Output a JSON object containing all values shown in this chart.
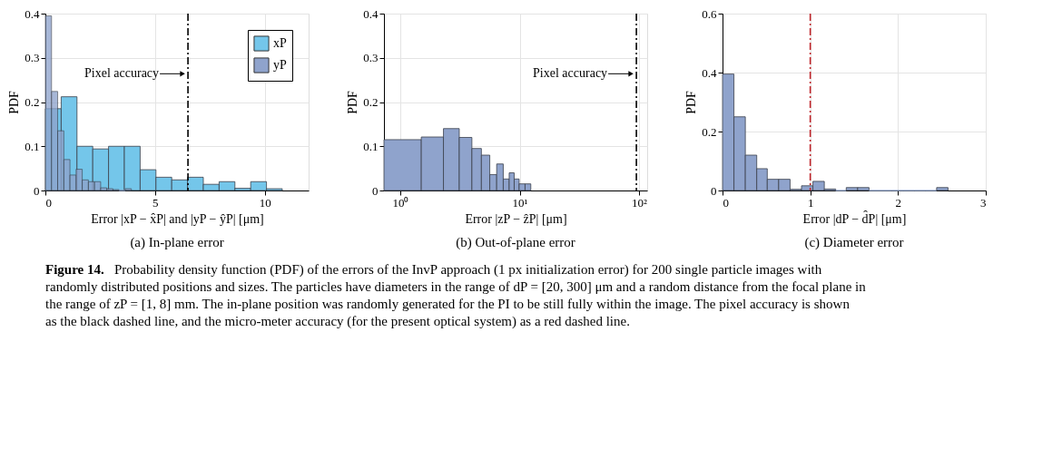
{
  "chart_data": [
    {
      "type": "histogram",
      "title": "(a) In-plane error",
      "xlabel": "Error |xP − x̂P| and |yP − ŷP| [μm]",
      "ylabel": "PDF",
      "xlim": [
        0,
        12
      ],
      "xticks": [
        0,
        5,
        10
      ],
      "ylim": [
        0,
        0.4
      ],
      "yticks": [
        0,
        0.1,
        0.2,
        0.3,
        0.4
      ],
      "grid": true,
      "legend": "top right",
      "bins": [
        0,
        0.72,
        1.44,
        2.16,
        2.88,
        3.6,
        4.32,
        5.04,
        5.76,
        6.48,
        7.2,
        7.92,
        8.64,
        9.36,
        10.08,
        10.8
      ],
      "series": [
        {
          "name": "xP",
          "color": "#74c6ea",
          "values": [
            0.185,
            0.212,
            0.1,
            0.094,
            0.1,
            0.1,
            0.047,
            0.03,
            0.024,
            0.03,
            0.014,
            0.02,
            0.005,
            0.02,
            0.004
          ]
        },
        {
          "name": "yP",
          "color": "#8fa3cc",
          "bins": [
            0,
            0.28,
            0.56,
            0.84,
            1.12,
            1.4,
            1.68,
            1.96,
            2.24,
            2.52,
            2.8,
            3.08,
            3.36,
            3.64,
            3.92
          ],
          "values": [
            0.395,
            0.224,
            0.135,
            0.07,
            0.035,
            0.048,
            0.024,
            0.02,
            0.02,
            0.006,
            0.004,
            0.002,
            0,
            0.004
          ]
        }
      ],
      "ref_lines": [
        {
          "axis": "x",
          "value": 6.5,
          "label": "Pixel accuracy",
          "color": "#000000",
          "line_style": "dashed"
        }
      ],
      "annotations": [
        "Figure 14.",
        "Probability density function (PDF) of the errors of the InvP approach (1 px initialization error) for 200 single particle images with randomly distributed positions and sizes. The particles have diameters in the range of dP = [20, 300] μm and a random distance from the focal plane in the range of zP = [1, 8] mm. The in-plane position was randomly generated for the PI to be still fully within the image. The pixel accuracy is shown as the black dashed line, and the micro-meter accuracy (for the present optical system) as a red dashed line."
      ]
    },
    {
      "type": "histogram",
      "title": "(b) Out-of-plane error",
      "xlabel": "Error |zP − ẑP| [μm]",
      "ylabel": "PDF",
      "log": "x",
      "xlim": [
        0.73,
        117
      ],
      "xticks": [
        {
          "value": 1,
          "label": "10⁰"
        },
        {
          "value": 10,
          "label": "10¹"
        },
        {
          "value": 100,
          "label": "10²"
        }
      ],
      "ylim": [
        0,
        0.4
      ],
      "yticks": [
        0,
        0.1,
        0.2,
        0.3,
        0.4
      ],
      "grid": true,
      "bins": [
        0.73,
        1.5,
        2.3,
        3.12,
        3.98,
        4.78,
        5.62,
        6.42,
        7.29,
        8.17,
        9.0,
        9.9,
        11.1,
        12.4
      ],
      "values": [
        0.115,
        0.121,
        0.14,
        0.12,
        0.095,
        0.08,
        0.036,
        0.06,
        0.026,
        0.04,
        0.026,
        0.015,
        0.015
      ],
      "color": "#8fa3cc",
      "ref_lines": [
        {
          "axis": "x",
          "value": 95,
          "label": "Pixel accuracy",
          "color": "#000000",
          "line_style": "dashed"
        }
      ]
    },
    {
      "type": "histogram",
      "title": "(c) Diameter error",
      "xlabel": "Error |dP − d̂P| [μm]",
      "ylabel": "PDF",
      "xlim": [
        0,
        3
      ],
      "xticks": [
        0,
        1,
        2,
        3
      ],
      "ylim": [
        0,
        0.6
      ],
      "yticks": [
        0,
        0.2,
        0.4,
        0.6
      ],
      "grid": true,
      "bins": [
        0,
        0.13,
        0.26,
        0.39,
        0.51,
        0.64,
        0.77,
        0.9,
        1.03,
        1.16,
        1.29,
        1.41,
        1.54,
        1.67,
        1.8,
        1.93,
        2.06,
        2.19,
        2.31,
        2.44,
        2.57
      ],
      "values": [
        0.395,
        0.25,
        0.12,
        0.074,
        0.038,
        0.038,
        0.004,
        0.016,
        0.031,
        0.005,
        0,
        0.01,
        0.01,
        0,
        0,
        0,
        0,
        0,
        0,
        0.01
      ],
      "color": "#8fa3cc",
      "ref_lines": [
        {
          "axis": "x",
          "value": 1,
          "color": "#c0282d",
          "line_style": "dashed"
        }
      ]
    }
  ]
}
